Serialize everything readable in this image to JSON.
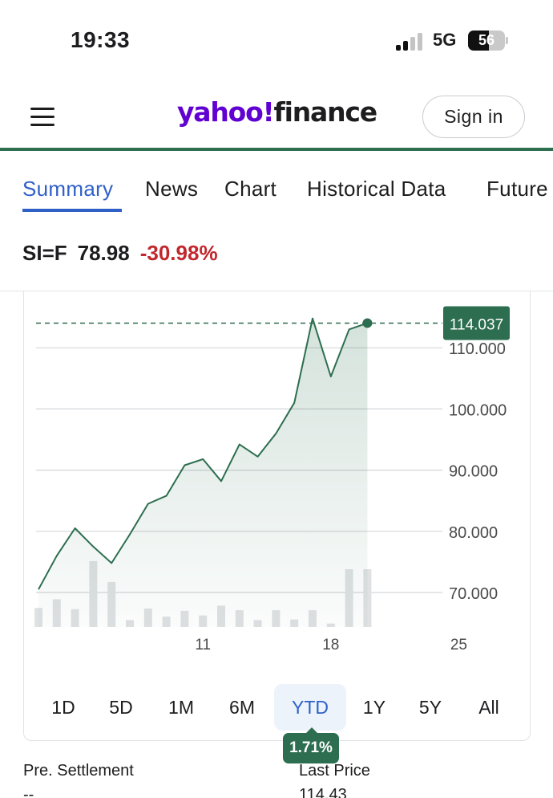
{
  "status_bar": {
    "time": "19:33",
    "network": "5G",
    "battery": "56",
    "battery_level": 0.56
  },
  "header": {
    "logo_yahoo": "yahoo",
    "logo_bang": "!",
    "logo_finance": "finance",
    "sign_in": "Sign in",
    "brand_color": "#6001d2",
    "accent_color": "#2c6e4f"
  },
  "tabs": [
    {
      "label": "Summary",
      "active": true
    },
    {
      "label": "News",
      "active": false
    },
    {
      "label": "Chart",
      "active": false
    },
    {
      "label": "Historical Data",
      "active": false
    },
    {
      "label": "Future",
      "active": false
    }
  ],
  "quote": {
    "symbol": "SI=F",
    "price": "78.98",
    "change": "-30.98%",
    "change_color": "#c1272d"
  },
  "chart_data": {
    "type": "line",
    "ylim": [
      63,
      116
    ],
    "y_ticks": [
      "70.000",
      "80.000",
      "90.000",
      "100.000",
      "110.000"
    ],
    "x_ticks": [
      {
        "day": 11,
        "label": "11"
      },
      {
        "day": 18,
        "label": "18"
      },
      {
        "day": 25,
        "label": "25"
      }
    ],
    "current_value": "114.037",
    "current_value_num": 114.037,
    "series": [
      {
        "x": [
          2,
          3,
          4,
          5,
          6,
          7,
          8,
          9,
          10,
          11,
          12,
          13,
          14,
          15,
          16,
          17,
          18,
          19,
          20,
          21,
          22
        ],
        "values": [
          70.5,
          76,
          80.5,
          77.5,
          74.8,
          79.5,
          84.5,
          85.8,
          90.8,
          91.8,
          88.2,
          94.2,
          92.2,
          96.0,
          101.0,
          114.8,
          105.3,
          113.0,
          114.037,
          null,
          null
        ]
      }
    ],
    "volume_bars": [
      {
        "x": 2,
        "h": 0.33
      },
      {
        "x": 3,
        "h": 0.48
      },
      {
        "x": 4,
        "h": 0.31
      },
      {
        "x": 5,
        "h": 1.14
      },
      {
        "x": 6,
        "h": 0.78
      },
      {
        "x": 7,
        "h": 0.12
      },
      {
        "x": 8,
        "h": 0.32
      },
      {
        "x": 9,
        "h": 0.18
      },
      {
        "x": 10,
        "h": 0.28
      },
      {
        "x": 11,
        "h": 0.2
      },
      {
        "x": 12,
        "h": 0.37
      },
      {
        "x": 13,
        "h": 0.29
      },
      {
        "x": 14,
        "h": 0.12
      },
      {
        "x": 15,
        "h": 0.29
      },
      {
        "x": 16,
        "h": 0.13
      },
      {
        "x": 17,
        "h": 0.29
      },
      {
        "x": 18,
        "h": 0.06
      },
      {
        "x": 19,
        "h": 1.0
      },
      {
        "x": 20,
        "h": 1.0
      }
    ],
    "line_color": "#2c6e4f",
    "grid": true
  },
  "ranges": [
    {
      "label": "1D",
      "active": false
    },
    {
      "label": "5D",
      "active": false
    },
    {
      "label": "1M",
      "active": false
    },
    {
      "label": "6M",
      "active": false
    },
    {
      "label": "YTD",
      "active": true
    },
    {
      "label": "1Y",
      "active": false
    },
    {
      "label": "5Y",
      "active": false
    },
    {
      "label": "All",
      "active": false
    }
  ],
  "ytd_change": "1.71%",
  "stats": [
    {
      "label": "Pre. Settlement",
      "value": "--"
    },
    {
      "label": "Last Price",
      "value": "114.43"
    }
  ]
}
